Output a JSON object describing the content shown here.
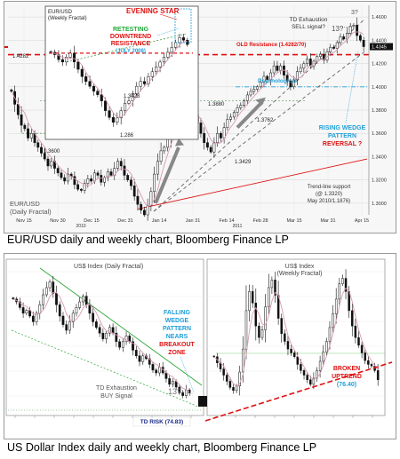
{
  "figure1": {
    "caption": "EUR/USD daily and weekly chart, Bloomberg Finance LP",
    "chart_data": {
      "type": "candlestick",
      "title": "EUR/USD (Daily Fractal)",
      "x_ticks": [
        "Nov 15",
        "Nov 30",
        "Dec 15",
        "Dec 31",
        "Jan 14",
        "Jan 31",
        "Feb 14",
        "Feb 28",
        "Mar 15",
        "Mar 31",
        "Apr 15"
      ],
      "x_year_labels": [
        "2010",
        "2011"
      ],
      "y_ticks": [
        "1.4600",
        "1.4400",
        "1.4200",
        "1.4000",
        "1.3800",
        "1.3600",
        "1.3400",
        "1.3200",
        "1.3000"
      ],
      "ylim": [
        1.29,
        1.47
      ],
      "last_price": "1.4345",
      "closes": [
        1.396,
        1.385,
        1.376,
        1.367,
        1.364,
        1.356,
        1.36,
        1.352,
        1.348,
        1.343,
        1.338,
        1.332,
        1.336,
        1.33,
        1.326,
        1.322,
        1.319,
        1.325,
        1.323,
        1.316,
        1.312,
        1.311,
        1.317,
        1.321,
        1.319,
        1.326,
        1.324,
        1.318,
        1.322,
        1.327,
        1.324,
        1.33,
        1.336,
        1.332,
        1.324,
        1.32,
        1.315,
        1.306,
        1.299,
        1.294,
        1.29,
        1.298,
        1.31,
        1.325,
        1.336,
        1.345,
        1.348,
        1.356,
        1.368,
        1.369,
        1.364,
        1.369,
        1.374,
        1.376,
        1.381,
        1.376,
        1.369,
        1.36,
        1.352,
        1.348,
        1.344,
        1.352,
        1.36,
        1.356,
        1.365,
        1.372,
        1.374,
        1.378,
        1.382,
        1.384,
        1.388,
        1.393,
        1.396,
        1.398,
        1.4,
        1.404,
        1.409,
        1.406,
        1.412,
        1.418,
        1.414,
        1.418,
        1.41,
        1.405,
        1.4,
        1.406,
        1.413,
        1.416,
        1.42,
        1.424,
        1.418,
        1.422,
        1.426,
        1.428,
        1.423,
        1.43,
        1.434,
        1.433,
        1.438,
        1.443,
        1.441,
        1.446,
        1.452,
        1.453,
        1.444,
        1.44,
        1.4345
      ]
    },
    "inset": {
      "title": "EUR/USD",
      "subtitle": "(Weekly Fractal)",
      "price_labels": [
        "1.4282",
        "1.3428",
        "1.286"
      ],
      "closes": [
        1.43,
        1.425,
        1.415,
        1.41,
        1.42,
        1.428,
        1.41,
        1.395,
        1.38,
        1.37,
        1.36,
        1.35,
        1.3428,
        1.33,
        1.31,
        1.296,
        1.286,
        1.295,
        1.31,
        1.325,
        1.33,
        1.345,
        1.36,
        1.37,
        1.365,
        1.38,
        1.39,
        1.4,
        1.41,
        1.42,
        1.43,
        1.44,
        1.45,
        1.46,
        1.455,
        1.446
      ]
    },
    "annotations": {
      "evening_star": "EVENING STAR",
      "retesting_1": "RETESTING",
      "retesting_2": "DOWNTREND",
      "retesting_3": "RESISTANCE",
      "retesting_4": "(JULY 2008)",
      "td_1": "TD Exhaustion",
      "td_2": "SELL signal?",
      "count_3": "3?",
      "count_13": "13?",
      "old_resistance": "OLD Resistance (1.4282/70)",
      "psychological": "Psychological",
      "level_13880": "1.3880",
      "level_13600": "1.3600",
      "level_13762": "1.3762",
      "level_13429": "1.3429",
      "wedge_1": "RISING WEDGE",
      "wedge_2": "PATTERN",
      "wedge_3": "REVERSAL ?",
      "trend_1": "Trend-line support",
      "trend_2": "(@ 1.3320)",
      "trend_3": "May 2010/1.1876)",
      "daily_1": "EUR/USD",
      "daily_2": "(Daily Fractal)"
    },
    "colors": {
      "bull": "#ffffff",
      "bear": "#111111",
      "ma": "#d79ab6",
      "red": "#e01010",
      "cyan": "#1e9fd8",
      "green": "#22a83a",
      "grey": "#8a8a8a"
    }
  },
  "figure2": {
    "caption": "US Dollar Index daily and weekly chart, Bloomberg Finance LP",
    "left": {
      "chart_data": {
        "type": "candlestick",
        "title": "US$ Index (Daily Fractal)",
        "closes": [
          81.2,
          81.0,
          80.6,
          80.2,
          80.4,
          80.0,
          79.6,
          80.2,
          80.8,
          81.5,
          82.0,
          82.4,
          81.6,
          80.8,
          80.0,
          79.4,
          79.0,
          79.6,
          80.2,
          80.6,
          81.0,
          81.4,
          80.8,
          80.2,
          79.6,
          79.2,
          78.8,
          78.4,
          78.8,
          79.2,
          78.8,
          78.2,
          77.8,
          78.2,
          78.6,
          78.2,
          77.6,
          77.2,
          76.8,
          77.2,
          77.0,
          76.6,
          76.2,
          76.0,
          76.4,
          76.0,
          75.6,
          75.2,
          75.4,
          75.0,
          74.6,
          74.4,
          74.8,
          74.6
        ]
      },
      "annotations": {
        "falling_1": "FALLING",
        "falling_2": "WEDGE",
        "falling_3": "PATTERN",
        "falling_4": "NEARS",
        "falling_5": "BREAKOUT",
        "falling_6": "ZONE",
        "td_1": "TD Exhaustion",
        "td_2": "BUY Signal",
        "count_13": "13?",
        "risk": "TD RISK (74.83)"
      }
    },
    "right": {
      "chart_data": {
        "type": "candlestick",
        "title": "US$ Index (Weekly Fractal)",
        "closes": [
          78.0,
          77.2,
          76.4,
          75.6,
          74.8,
          74.0,
          73.6,
          74.2,
          76.0,
          79.0,
          84.0,
          86.5,
          85.0,
          82.0,
          80.5,
          81.5,
          84.5,
          87.0,
          88.0,
          86.0,
          83.0,
          81.0,
          80.0,
          79.0,
          78.5,
          78.0,
          77.0,
          76.2,
          75.6,
          75.0,
          74.4,
          75.2,
          76.2,
          77.4,
          78.6,
          80.0,
          81.8,
          83.6,
          85.5,
          87.5,
          88.2,
          86.5,
          84.0,
          82.0,
          80.5,
          79.5,
          78.5,
          77.5,
          77.0,
          76.8,
          76.2,
          75.0
        ]
      },
      "annotations": {
        "broken_1": "BROKEN",
        "broken_2": "UPTREND",
        "broken_3": "(76.40)"
      }
    }
  }
}
